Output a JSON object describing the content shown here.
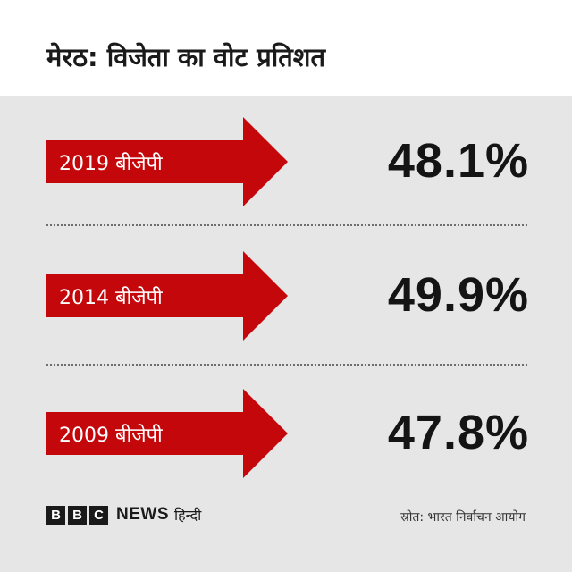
{
  "title": "मेरठ: विजेता का वोट प्रतिशत",
  "colors": {
    "arrow": "#c4070b",
    "background_panel": "#e6e6e6",
    "text": "#141414"
  },
  "results": [
    {
      "label": "2019 बीजेपी",
      "value": "48.1%"
    },
    {
      "label": "2014 बीजेपी",
      "value": "49.9%"
    },
    {
      "label": "2009 बीजेपी",
      "value": "47.8%"
    }
  ],
  "footer": {
    "logo_blocks": [
      "B",
      "B",
      "C"
    ],
    "news": "NEWS",
    "language": "हिन्दी",
    "source": "स्रोत: भारत निर्वाचन आयोग"
  }
}
